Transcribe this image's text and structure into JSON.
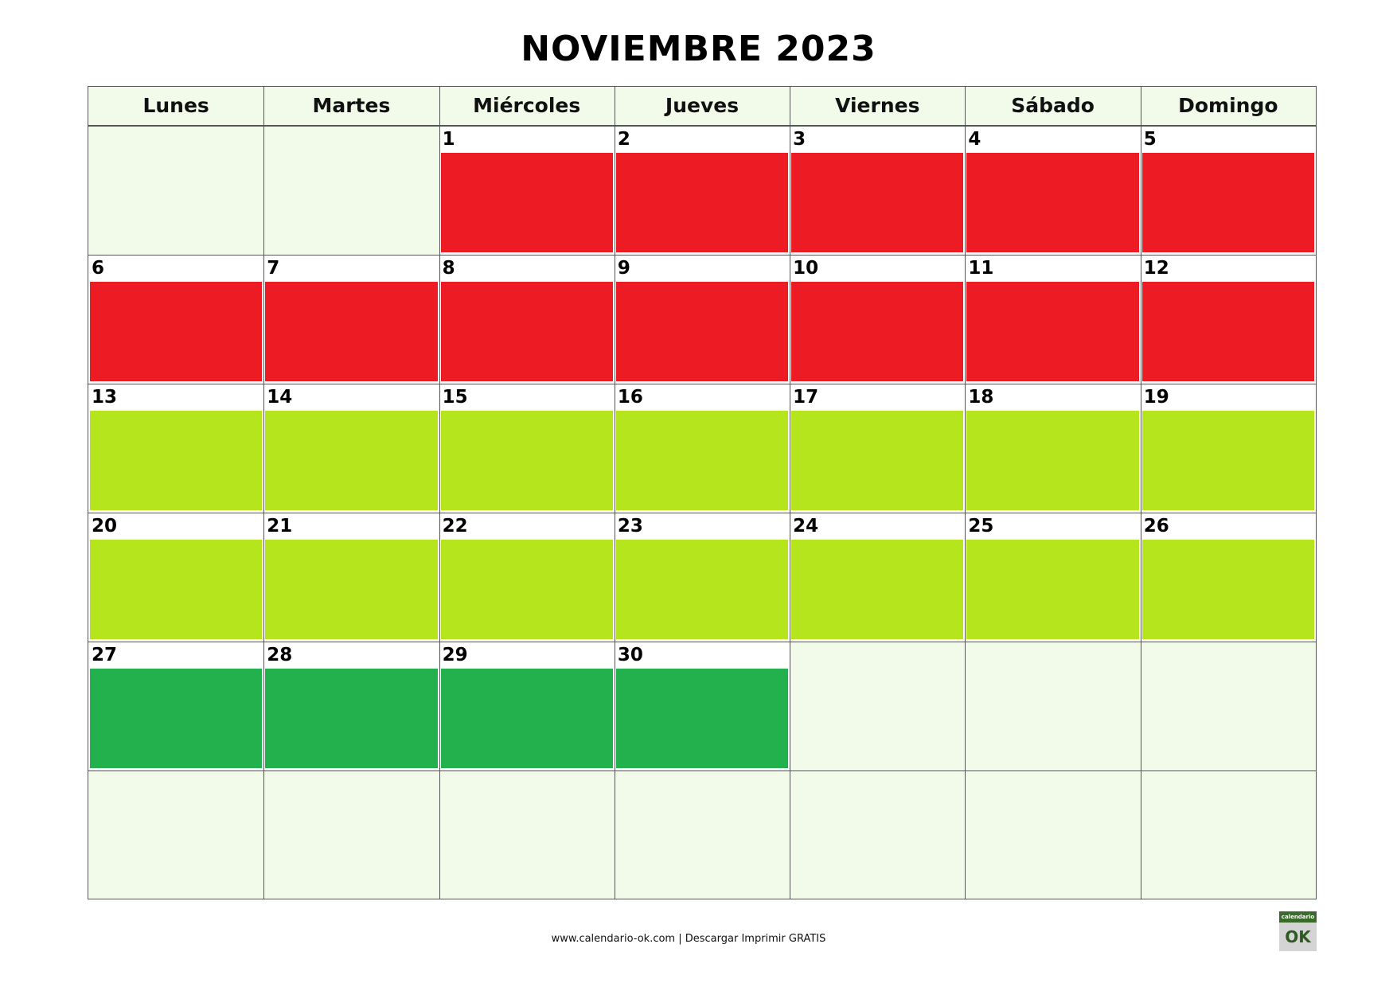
{
  "title": "NOVIEMBRE 2023",
  "weekdays": [
    "Lunes",
    "Martes",
    "Miércoles",
    "Jueves",
    "Viernes",
    "Sábado",
    "Domingo"
  ],
  "colors": {
    "red": "#ed1c24",
    "lime": "#b5e61d",
    "green": "#22b14c",
    "empty": "#f2faea",
    "grid": "#555555"
  },
  "weeks": [
    [
      null,
      null,
      {
        "day": "1",
        "color": "red"
      },
      {
        "day": "2",
        "color": "red"
      },
      {
        "day": "3",
        "color": "red"
      },
      {
        "day": "4",
        "color": "red"
      },
      {
        "day": "5",
        "color": "red"
      }
    ],
    [
      {
        "day": "6",
        "color": "red"
      },
      {
        "day": "7",
        "color": "red"
      },
      {
        "day": "8",
        "color": "red"
      },
      {
        "day": "9",
        "color": "red"
      },
      {
        "day": "10",
        "color": "red"
      },
      {
        "day": "11",
        "color": "red"
      },
      {
        "day": "12",
        "color": "red"
      }
    ],
    [
      {
        "day": "13",
        "color": "lime"
      },
      {
        "day": "14",
        "color": "lime"
      },
      {
        "day": "15",
        "color": "lime"
      },
      {
        "day": "16",
        "color": "lime"
      },
      {
        "day": "17",
        "color": "lime"
      },
      {
        "day": "18",
        "color": "lime"
      },
      {
        "day": "19",
        "color": "lime"
      }
    ],
    [
      {
        "day": "20",
        "color": "lime"
      },
      {
        "day": "21",
        "color": "lime"
      },
      {
        "day": "22",
        "color": "lime"
      },
      {
        "day": "23",
        "color": "lime"
      },
      {
        "day": "24",
        "color": "lime"
      },
      {
        "day": "25",
        "color": "lime"
      },
      {
        "day": "26",
        "color": "lime"
      }
    ],
    [
      {
        "day": "27",
        "color": "green"
      },
      {
        "day": "28",
        "color": "green"
      },
      {
        "day": "29",
        "color": "green"
      },
      {
        "day": "30",
        "color": "green"
      },
      null,
      null,
      null
    ],
    [
      null,
      null,
      null,
      null,
      null,
      null,
      null
    ]
  ],
  "footer": "www.calendario-ok.com | Descargar Imprimir GRATIS",
  "logo": {
    "top": "calendario",
    "bottom": "OK"
  }
}
